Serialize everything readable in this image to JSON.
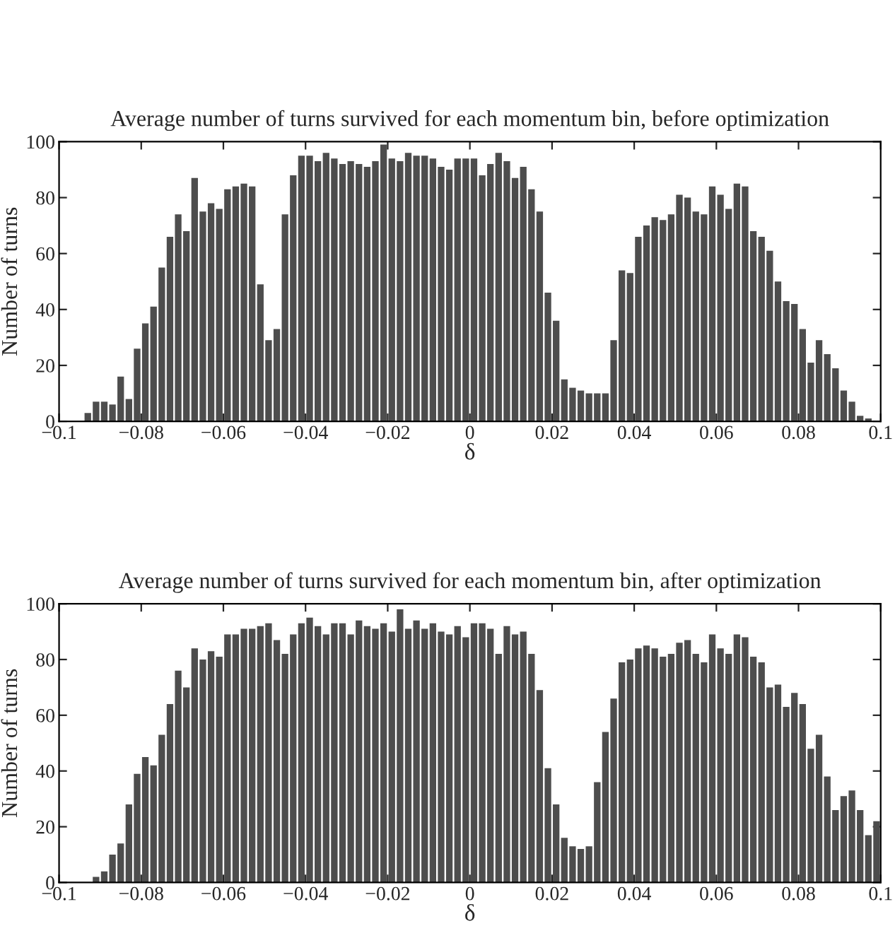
{
  "chart_data": [
    {
      "type": "histogram",
      "title": "Average number of turns survived for each momentum bin, before optimization",
      "xlabel": "δ",
      "ylabel": "Number of turns",
      "color": "#4d4d4d",
      "bins": [
        -0.1,
        -0.098,
        -0.096,
        -0.094,
        -0.092,
        -0.09,
        -0.088,
        -0.086,
        -0.084,
        -0.082,
        -0.08,
        -0.078,
        -0.076,
        -0.074,
        -0.072,
        -0.07,
        -0.068,
        -0.066,
        -0.064,
        -0.062,
        -0.06,
        -0.058,
        -0.056,
        -0.054,
        -0.052,
        -0.05,
        -0.048,
        -0.046,
        -0.044,
        -0.042,
        -0.04,
        -0.038,
        -0.036,
        -0.034,
        -0.032,
        -0.03,
        -0.028,
        -0.026,
        -0.024,
        -0.022,
        -0.02,
        -0.018,
        -0.016,
        -0.014,
        -0.012,
        -0.01,
        -0.008,
        -0.006,
        -0.004,
        -0.002,
        0,
        0.002,
        0.004,
        0.006,
        0.008,
        0.01,
        0.012,
        0.014,
        0.016,
        0.018,
        0.02,
        0.022,
        0.024,
        0.026,
        0.028,
        0.03,
        0.032,
        0.034,
        0.036,
        0.038,
        0.04,
        0.042,
        0.044,
        0.046,
        0.048,
        0.05,
        0.052,
        0.054,
        0.056,
        0.058,
        0.06,
        0.062,
        0.064,
        0.066,
        0.068,
        0.07,
        0.072,
        0.074,
        0.076,
        0.078,
        0.08,
        0.082,
        0.084,
        0.086,
        0.088,
        0.09,
        0.092,
        0.094,
        0.096,
        0.098,
        0.1
      ],
      "values": [
        0,
        0,
        0,
        3,
        7,
        7,
        6,
        16,
        8,
        26,
        35,
        41,
        55,
        66,
        74,
        68,
        87,
        75,
        78,
        76,
        83,
        84,
        85,
        84,
        49,
        29,
        33,
        74,
        88,
        95,
        95,
        93,
        96,
        94,
        92,
        93,
        92,
        91,
        93,
        99,
        94,
        93,
        96,
        95,
        95,
        94,
        91,
        90,
        94,
        94,
        94,
        88,
        92,
        96,
        93,
        87,
        91,
        83,
        75,
        46,
        36,
        15,
        12,
        11,
        10,
        10,
        10,
        29,
        54,
        53,
        66,
        70,
        73,
        72,
        74,
        81,
        80,
        75,
        74,
        84,
        81,
        76,
        85,
        84,
        68,
        66,
        61,
        50,
        43,
        42,
        33,
        21,
        29,
        24,
        19,
        11,
        7,
        2,
        1,
        0
      ],
      "xlim": [
        -0.1,
        0.1
      ],
      "xticks": [
        {
          "value": -0.1,
          "label": "−0.1"
        },
        {
          "value": -0.08,
          "label": "−0.08"
        },
        {
          "value": -0.06,
          "label": "−0.06"
        },
        {
          "value": -0.04,
          "label": "−0.04"
        },
        {
          "value": -0.02,
          "label": "−0.02"
        },
        0,
        0.02,
        0.04,
        0.06,
        0.08,
        0.1
      ],
      "ylim": [
        0,
        100
      ],
      "yticks": [
        0,
        20,
        40,
        60,
        80,
        100
      ],
      "grid": false,
      "legend": false
    },
    {
      "type": "histogram",
      "title": "Average number of turns survived for each momentum bin, after optimization",
      "xlabel": "δ",
      "ylabel": "Number of turns",
      "color": "#4d4d4d",
      "bins": [
        -0.1,
        -0.098,
        -0.096,
        -0.094,
        -0.092,
        -0.09,
        -0.088,
        -0.086,
        -0.084,
        -0.082,
        -0.08,
        -0.078,
        -0.076,
        -0.074,
        -0.072,
        -0.07,
        -0.068,
        -0.066,
        -0.064,
        -0.062,
        -0.06,
        -0.058,
        -0.056,
        -0.054,
        -0.052,
        -0.05,
        -0.048,
        -0.046,
        -0.044,
        -0.042,
        -0.04,
        -0.038,
        -0.036,
        -0.034,
        -0.032,
        -0.03,
        -0.028,
        -0.026,
        -0.024,
        -0.022,
        -0.02,
        -0.018,
        -0.016,
        -0.014,
        -0.012,
        -0.01,
        -0.008,
        -0.006,
        -0.004,
        -0.002,
        0,
        0.002,
        0.004,
        0.006,
        0.008,
        0.01,
        0.012,
        0.014,
        0.016,
        0.018,
        0.02,
        0.022,
        0.024,
        0.026,
        0.028,
        0.03,
        0.032,
        0.034,
        0.036,
        0.038,
        0.04,
        0.042,
        0.044,
        0.046,
        0.048,
        0.05,
        0.052,
        0.054,
        0.056,
        0.058,
        0.06,
        0.062,
        0.064,
        0.066,
        0.068,
        0.07,
        0.072,
        0.074,
        0.076,
        0.078,
        0.08,
        0.082,
        0.084,
        0.086,
        0.088,
        0.09,
        0.092,
        0.094,
        0.096,
        0.098,
        0.1
      ],
      "values": [
        0,
        0,
        0,
        0,
        2,
        4,
        10,
        14,
        28,
        39,
        45,
        42,
        53,
        64,
        76,
        70,
        84,
        80,
        83,
        81,
        89,
        89,
        91,
        91,
        92,
        93,
        87,
        82,
        89,
        93,
        95,
        92,
        89,
        93,
        93,
        89,
        94,
        92,
        91,
        93,
        90,
        98,
        91,
        94,
        91,
        93,
        90,
        89,
        92,
        88,
        93,
        93,
        91,
        82,
        92,
        89,
        90,
        82,
        69,
        41,
        28,
        16,
        13,
        12,
        13,
        36,
        54,
        66,
        79,
        80,
        84,
        85,
        84,
        81,
        82,
        86,
        87,
        82,
        79,
        89,
        84,
        82,
        89,
        88,
        81,
        79,
        70,
        71,
        63,
        68,
        64,
        48,
        53,
        38,
        26,
        31,
        33,
        26,
        17,
        22
      ],
      "xlim": [
        -0.1,
        0.1
      ],
      "xticks": [
        {
          "value": -0.1,
          "label": "−0.1"
        },
        {
          "value": -0.08,
          "label": "−0.08"
        },
        {
          "value": -0.06,
          "label": "−0.06"
        },
        {
          "value": -0.04,
          "label": "−0.04"
        },
        {
          "value": -0.02,
          "label": "−0.02"
        },
        0,
        0.02,
        0.04,
        0.06,
        0.08,
        0.1
      ],
      "ylim": [
        0,
        100
      ],
      "yticks": [
        0,
        20,
        40,
        60,
        80,
        100
      ],
      "grid": false,
      "legend": false
    }
  ]
}
